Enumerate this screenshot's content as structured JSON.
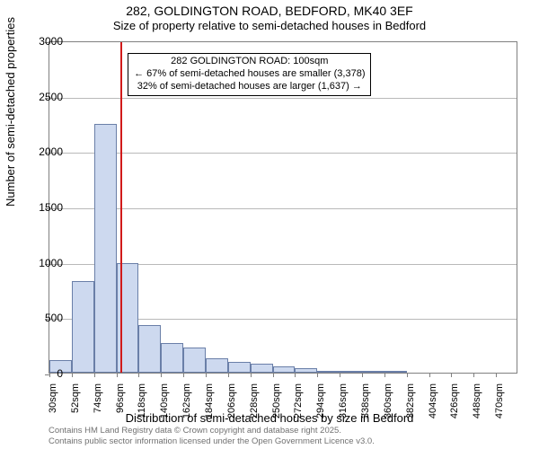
{
  "title": {
    "line1": "282, GOLDINGTON ROAD, BEDFORD, MK40 3EF",
    "line2": "Size of property relative to semi-detached houses in Bedford"
  },
  "chart": {
    "type": "histogram",
    "background_color": "#ffffff",
    "border_color": "#808080",
    "bar_fill": "#cdd9ef",
    "bar_stroke": "#6a7fa8",
    "marker_color": "#d11a1a",
    "grid_color": "#808080",
    "ylabel": "Number of semi-detached properties",
    "xlabel": "Distribution of semi-detached houses by size in Bedford",
    "ylim": [
      0,
      3000
    ],
    "yticks": [
      0,
      500,
      1000,
      1500,
      2000,
      2500,
      3000
    ],
    "x_start": 30,
    "x_step": 22,
    "x_count": 21,
    "x_unit": "sqm",
    "bars": [
      110,
      830,
      2250,
      990,
      430,
      270,
      230,
      130,
      100,
      80,
      60,
      40,
      20,
      10,
      5,
      5,
      0,
      0,
      0,
      0,
      0
    ],
    "marker_x": 100,
    "annotation": {
      "line1": "282 GOLDINGTON ROAD: 100sqm",
      "line2": "← 67% of semi-detached houses are smaller (3,378)",
      "line3": "32% of semi-detached houses are larger (1,637) →"
    }
  },
  "footer": {
    "line1": "Contains HM Land Registry data © Crown copyright and database right 2025.",
    "line2": "Contains public sector information licensed under the Open Government Licence v3.0."
  }
}
